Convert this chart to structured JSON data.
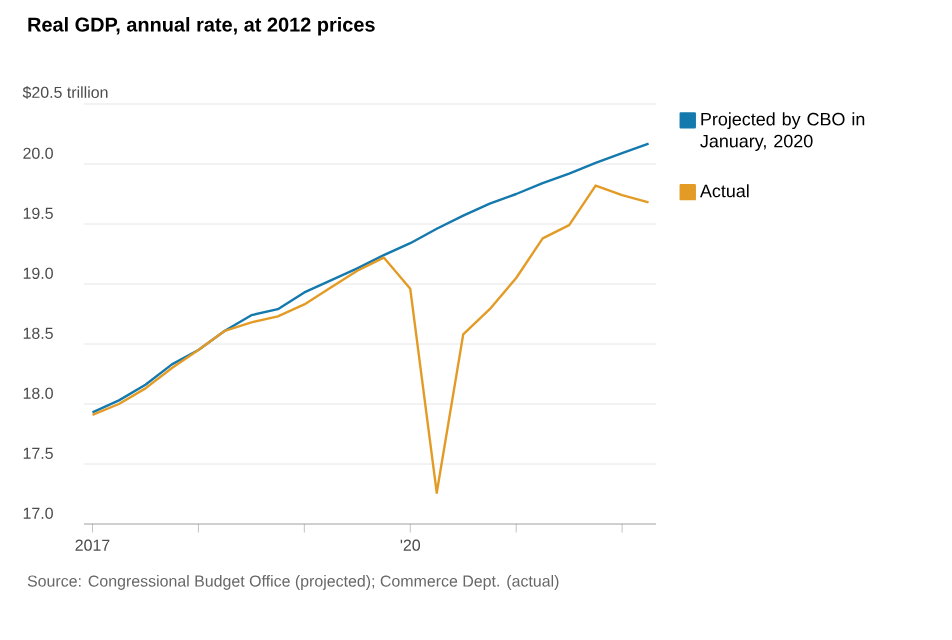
{
  "chart_data": {
    "type": "line",
    "title": "Real GDP, annual rate, at 2012 prices",
    "x": [
      2017,
      2017.25,
      2017.5,
      2017.75,
      2018,
      2018.25,
      2018.5,
      2018.75,
      2019,
      2019.25,
      2019.5,
      2019.75,
      2020,
      2020.25,
      2020.5,
      2020.75,
      2021,
      2021.25,
      2021.5,
      2021.75,
      2022,
      2022.25
    ],
    "series": [
      {
        "name": "Projected by CBO in January, 2020",
        "color": "#1479ad",
        "values": [
          17.93,
          18.03,
          18.16,
          18.33,
          18.45,
          18.61,
          18.74,
          18.79,
          18.93,
          19.03,
          19.13,
          19.24,
          19.34,
          19.46,
          19.57,
          19.67,
          19.75,
          19.84,
          19.92,
          20.01,
          20.09,
          20.17
        ]
      },
      {
        "name": "Actual",
        "color": "#e39b26",
        "values": [
          17.91,
          18.0,
          18.13,
          18.3,
          18.45,
          18.61,
          18.68,
          18.73,
          18.83,
          18.97,
          19.11,
          19.22,
          18.96,
          17.26,
          18.58,
          18.79,
          19.05,
          19.38,
          19.49,
          19.82,
          19.74,
          19.68
        ]
      }
    ],
    "xlim": [
      2016.92,
      2022.32
    ],
    "xticks": [
      {
        "value": 2017,
        "label": "2017"
      },
      {
        "value": 2018,
        "label": null
      },
      {
        "value": 2019,
        "label": null
      },
      {
        "value": 2020,
        "label": "'20"
      },
      {
        "value": 2021,
        "label": null
      },
      {
        "value": 2022,
        "label": null
      }
    ],
    "ylim": [
      17.0,
      20.5
    ],
    "yticks": [
      {
        "value": 17.0,
        "label": "17.0"
      },
      {
        "value": 17.5,
        "label": "17.5"
      },
      {
        "value": 18.0,
        "label": "18.0"
      },
      {
        "value": 18.5,
        "label": "18.5"
      },
      {
        "value": 19.0,
        "label": "19.0"
      },
      {
        "value": 19.5,
        "label": "19.5"
      },
      {
        "value": 20.0,
        "label": "20.0"
      },
      {
        "value": 20.5,
        "label": "$20.5 trillion"
      }
    ],
    "grid": "y",
    "legend": "right",
    "marker": "none",
    "line_style": "solid",
    "annotations": [
      "Source: Congressional Budget Office (projected); Commerce Dept. (actual)"
    ]
  }
}
